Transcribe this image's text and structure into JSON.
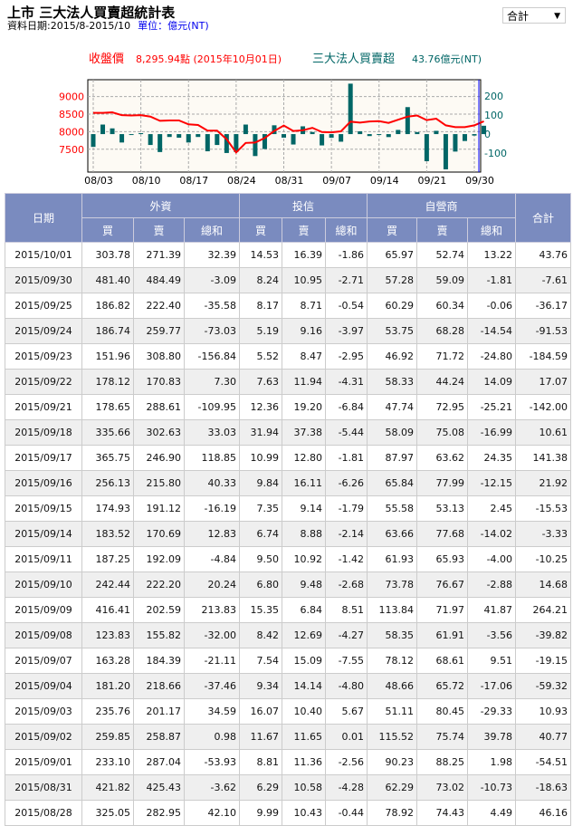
{
  "header": {
    "title": "上市 三大法人買賣超統計表",
    "date_range": "資料日期:2015/8-2015/10",
    "unit": "單位：億元(NT)"
  },
  "select": {
    "value": "合計"
  },
  "chart_data": {
    "type": "bar+line",
    "price_label": "收盤價",
    "price_value": "8,295.94點 (2015年10月01日)",
    "net_label": "三大法人買賣超",
    "net_value": "43.76億元(NT)",
    "colors": {
      "price": "#ff0000",
      "net": "#006666",
      "cursor": "#0000ff"
    },
    "left_ticks": [
      "9000",
      "8500",
      "8000",
      "7500"
    ],
    "left_ylim": [
      6850,
      9480
    ],
    "right_ticks": [
      "200",
      "100",
      "0",
      "-100"
    ],
    "right_ylim": [
      -199,
      285
    ],
    "x_ticks": [
      "08/03",
      "08/10",
      "08/17",
      "08/24",
      "08/31",
      "09/07",
      "09/14",
      "09/21",
      "09/30"
    ],
    "dates": [
      "08/03",
      "08/04",
      "08/05",
      "08/06",
      "08/07",
      "08/10",
      "08/11",
      "08/12",
      "08/13",
      "08/14",
      "08/17",
      "08/18",
      "08/19",
      "08/20",
      "08/21",
      "08/24",
      "08/25",
      "08/26",
      "08/27",
      "08/28",
      "08/31",
      "09/01",
      "09/02",
      "09/03",
      "09/04",
      "09/07",
      "09/08",
      "09/09",
      "09/10",
      "09/11",
      "09/14",
      "09/15",
      "09/16",
      "09/17",
      "09/18",
      "09/21",
      "09/22",
      "09/23",
      "09/24",
      "09/25",
      "09/30",
      "10/01"
    ],
    "close": [
      8535,
      8535,
      8550,
      8470,
      8460,
      8470,
      8430,
      8310,
      8320,
      8320,
      8210,
      8190,
      8030,
      8030,
      7786,
      7410,
      7680,
      7690,
      7820,
      8020,
      8175,
      8020,
      8040,
      8110,
      7990,
      7980,
      8010,
      8285,
      8260,
      8290,
      8300,
      8250,
      8340,
      8430,
      8460,
      8330,
      8370,
      8180,
      8130,
      8130,
      8180,
      8296
    ],
    "net": [
      -67,
      50,
      30,
      -44,
      -2,
      5,
      -57,
      -94,
      -15,
      -19,
      -44,
      -15,
      -90,
      -57,
      -99,
      -94,
      50,
      -115,
      -78,
      46.16,
      -18.63,
      -54.51,
      40.77,
      10.93,
      -59.32,
      -19.15,
      -39.82,
      264.21,
      14.68,
      -10.25,
      -3.33,
      -15.53,
      21.92,
      141.38,
      10.61,
      -142.0,
      17.07,
      -184.59,
      -91.53,
      -36.17,
      -7.61,
      43.76
    ],
    "grid": true
  },
  "table": {
    "groups": [
      "日期",
      "外資",
      "投信",
      "自營商",
      "合計"
    ],
    "sub": [
      "買",
      "賣",
      "總和",
      "買",
      "賣",
      "總和",
      "買",
      "賣",
      "總和"
    ],
    "rows": [
      [
        "2015/10/01",
        "303.78",
        "271.39",
        "32.39",
        "14.53",
        "16.39",
        "-1.86",
        "65.97",
        "52.74",
        "13.22",
        "43.76"
      ],
      [
        "2015/09/30",
        "481.40",
        "484.49",
        "-3.09",
        "8.24",
        "10.95",
        "-2.71",
        "57.28",
        "59.09",
        "-1.81",
        "-7.61"
      ],
      [
        "2015/09/25",
        "186.82",
        "222.40",
        "-35.58",
        "8.17",
        "8.71",
        "-0.54",
        "60.29",
        "60.34",
        "-0.06",
        "-36.17"
      ],
      [
        "2015/09/24",
        "186.74",
        "259.77",
        "-73.03",
        "5.19",
        "9.16",
        "-3.97",
        "53.75",
        "68.28",
        "-14.54",
        "-91.53"
      ],
      [
        "2015/09/23",
        "151.96",
        "308.80",
        "-156.84",
        "5.52",
        "8.47",
        "-2.95",
        "46.92",
        "71.72",
        "-24.80",
        "-184.59"
      ],
      [
        "2015/09/22",
        "178.12",
        "170.83",
        "7.30",
        "7.63",
        "11.94",
        "-4.31",
        "58.33",
        "44.24",
        "14.09",
        "17.07"
      ],
      [
        "2015/09/21",
        "178.65",
        "288.61",
        "-109.95",
        "12.36",
        "19.20",
        "-6.84",
        "47.74",
        "72.95",
        "-25.21",
        "-142.00"
      ],
      [
        "2015/09/18",
        "335.66",
        "302.63",
        "33.03",
        "31.94",
        "37.38",
        "-5.44",
        "58.09",
        "75.08",
        "-16.99",
        "10.61"
      ],
      [
        "2015/09/17",
        "365.75",
        "246.90",
        "118.85",
        "10.99",
        "12.80",
        "-1.81",
        "87.97",
        "63.62",
        "24.35",
        "141.38"
      ],
      [
        "2015/09/16",
        "256.13",
        "215.80",
        "40.33",
        "9.84",
        "16.11",
        "-6.26",
        "65.84",
        "77.99",
        "-12.15",
        "21.92"
      ],
      [
        "2015/09/15",
        "174.93",
        "191.12",
        "-16.19",
        "7.35",
        "9.14",
        "-1.79",
        "55.58",
        "53.13",
        "2.45",
        "-15.53"
      ],
      [
        "2015/09/14",
        "183.52",
        "170.69",
        "12.83",
        "6.74",
        "8.88",
        "-2.14",
        "63.66",
        "77.68",
        "-14.02",
        "-3.33"
      ],
      [
        "2015/09/11",
        "187.25",
        "192.09",
        "-4.84",
        "9.50",
        "10.92",
        "-1.42",
        "61.93",
        "65.93",
        "-4.00",
        "-10.25"
      ],
      [
        "2015/09/10",
        "242.44",
        "222.20",
        "20.24",
        "6.80",
        "9.48",
        "-2.68",
        "73.78",
        "76.67",
        "-2.88",
        "14.68"
      ],
      [
        "2015/09/09",
        "416.41",
        "202.59",
        "213.83",
        "15.35",
        "6.84",
        "8.51",
        "113.84",
        "71.97",
        "41.87",
        "264.21"
      ],
      [
        "2015/09/08",
        "123.83",
        "155.82",
        "-32.00",
        "8.42",
        "12.69",
        "-4.27",
        "58.35",
        "61.91",
        "-3.56",
        "-39.82"
      ],
      [
        "2015/09/07",
        "163.28",
        "184.39",
        "-21.11",
        "7.54",
        "15.09",
        "-7.55",
        "78.12",
        "68.61",
        "9.51",
        "-19.15"
      ],
      [
        "2015/09/04",
        "181.20",
        "218.66",
        "-37.46",
        "9.34",
        "14.14",
        "-4.80",
        "48.66",
        "65.72",
        "-17.06",
        "-59.32"
      ],
      [
        "2015/09/03",
        "235.76",
        "201.17",
        "34.59",
        "16.07",
        "10.40",
        "5.67",
        "51.11",
        "80.45",
        "-29.33",
        "10.93"
      ],
      [
        "2015/09/02",
        "259.85",
        "258.87",
        "0.98",
        "11.67",
        "11.65",
        "0.01",
        "115.52",
        "75.74",
        "39.78",
        "40.77"
      ],
      [
        "2015/09/01",
        "233.10",
        "287.04",
        "-53.93",
        "8.81",
        "11.36",
        "-2.56",
        "90.23",
        "88.25",
        "1.98",
        "-54.51"
      ],
      [
        "2015/08/31",
        "421.82",
        "425.43",
        "-3.62",
        "6.29",
        "10.58",
        "-4.28",
        "62.29",
        "73.02",
        "-10.73",
        "-18.63"
      ],
      [
        "2015/08/28",
        "325.05",
        "282.95",
        "42.10",
        "9.99",
        "10.43",
        "-0.44",
        "78.92",
        "74.43",
        "4.49",
        "46.16"
      ]
    ]
  }
}
